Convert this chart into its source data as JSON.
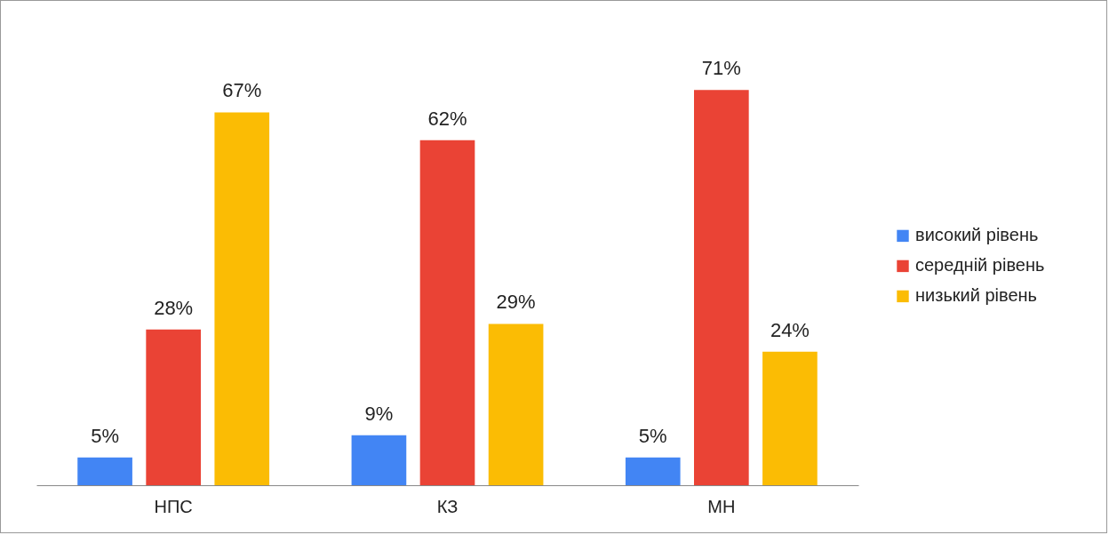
{
  "chart_data": {
    "type": "bar",
    "categories": [
      "НПС",
      "КЗ",
      "МН"
    ],
    "series": [
      {
        "name": "високий рівень",
        "color": "#4285f4",
        "values": [
          5,
          9,
          5
        ],
        "value_labels": [
          "5%",
          "9%",
          "5%"
        ]
      },
      {
        "name": "середній рівень",
        "color": "#ea4335",
        "values": [
          28,
          62,
          71
        ],
        "value_labels": [
          "28%",
          "62%",
          "71%"
        ]
      },
      {
        "name": "низький рівень",
        "color": "#fbbc04",
        "values": [
          67,
          29,
          24
        ],
        "value_labels": [
          "67%",
          "29%",
          "24%"
        ]
      }
    ],
    "legend": "right"
  }
}
